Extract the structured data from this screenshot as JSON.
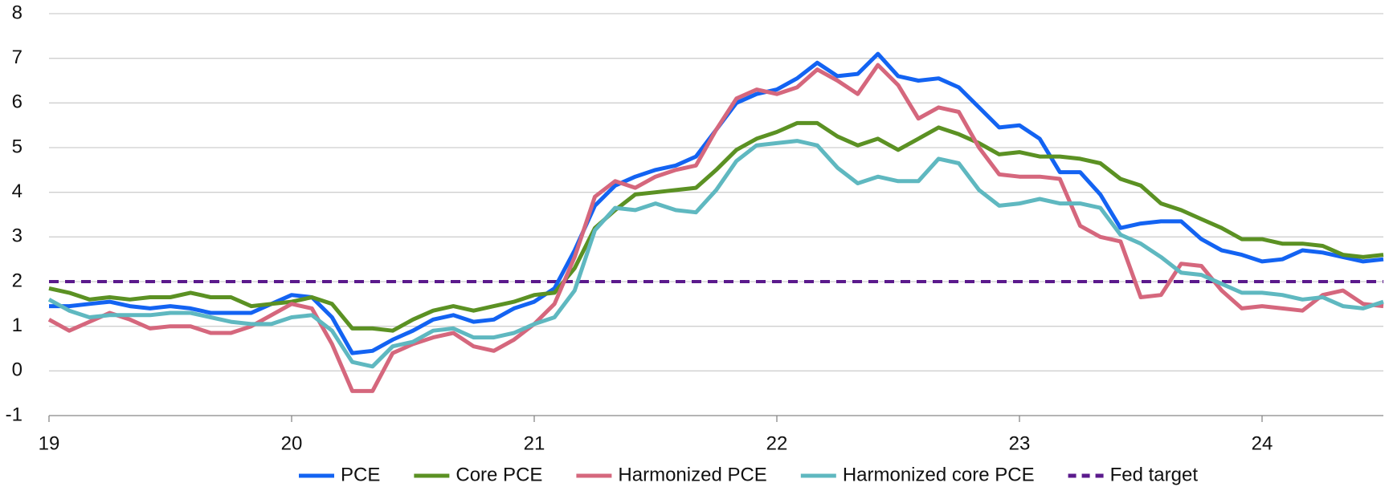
{
  "chart_data": {
    "type": "line",
    "categories": [
      "19",
      null,
      null,
      null,
      null,
      null,
      null,
      null,
      null,
      null,
      null,
      null,
      "20",
      null,
      null,
      null,
      null,
      null,
      null,
      null,
      null,
      null,
      null,
      null,
      "21",
      null,
      null,
      null,
      null,
      null,
      null,
      null,
      null,
      null,
      null,
      null,
      "22",
      null,
      null,
      null,
      null,
      null,
      null,
      null,
      null,
      null,
      null,
      null,
      "23",
      null,
      null,
      null,
      null,
      null,
      null,
      null,
      null,
      null,
      null,
      null,
      "24",
      null,
      null,
      null,
      null,
      null,
      null
    ],
    "series": [
      {
        "name": "PCE",
        "color": "#1363f2",
        "values": [
          1.45,
          1.45,
          1.5,
          1.55,
          1.45,
          1.4,
          1.45,
          1.4,
          1.3,
          1.3,
          1.3,
          1.5,
          1.7,
          1.65,
          1.2,
          0.4,
          0.45,
          0.7,
          0.9,
          1.15,
          1.25,
          1.1,
          1.15,
          1.4,
          1.55,
          1.85,
          2.7,
          3.7,
          4.15,
          4.35,
          4.5,
          4.6,
          4.8,
          5.4,
          6.0,
          6.2,
          6.3,
          6.55,
          6.9,
          6.6,
          6.65,
          7.1,
          6.6,
          6.5,
          6.55,
          6.35,
          5.9,
          5.45,
          5.5,
          5.2,
          4.45,
          4.45,
          3.95,
          3.2,
          3.3,
          3.35,
          3.35,
          2.95,
          2.7,
          2.6,
          2.45,
          2.5,
          2.7,
          2.65,
          2.55,
          2.45,
          2.5
        ]
      },
      {
        "name": "Core PCE",
        "color": "#5b9123",
        "values": [
          1.85,
          1.75,
          1.6,
          1.65,
          1.6,
          1.65,
          1.65,
          1.75,
          1.65,
          1.65,
          1.45,
          1.5,
          1.55,
          1.65,
          1.5,
          0.95,
          0.95,
          0.9,
          1.15,
          1.35,
          1.45,
          1.35,
          1.45,
          1.55,
          1.7,
          1.75,
          2.3,
          3.2,
          3.6,
          3.95,
          4.0,
          4.05,
          4.1,
          4.5,
          4.95,
          5.2,
          5.35,
          5.55,
          5.55,
          5.25,
          5.05,
          5.2,
          4.95,
          5.2,
          5.45,
          5.3,
          5.1,
          4.85,
          4.9,
          4.8,
          4.8,
          4.75,
          4.65,
          4.3,
          4.15,
          3.75,
          3.6,
          3.4,
          3.2,
          2.95,
          2.95,
          2.85,
          2.85,
          2.8,
          2.6,
          2.55,
          2.6
        ]
      },
      {
        "name": "Harmonized PCE",
        "color": "#d5677d",
        "values": [
          1.15,
          0.9,
          1.1,
          1.3,
          1.15,
          0.95,
          1.0,
          1.0,
          0.85,
          0.85,
          1.0,
          1.25,
          1.5,
          1.4,
          0.6,
          -0.45,
          -0.45,
          0.4,
          0.6,
          0.75,
          0.85,
          0.55,
          0.45,
          0.7,
          1.05,
          1.5,
          2.55,
          3.9,
          4.25,
          4.1,
          4.35,
          4.5,
          4.6,
          5.4,
          6.1,
          6.3,
          6.2,
          6.35,
          6.75,
          6.5,
          6.2,
          6.85,
          6.4,
          5.65,
          5.9,
          5.8,
          5.0,
          4.4,
          4.35,
          4.35,
          4.3,
          3.25,
          3.0,
          2.9,
          1.65,
          1.7,
          2.4,
          2.35,
          1.8,
          1.4,
          1.45,
          1.4,
          1.35,
          1.7,
          1.8,
          1.5,
          1.45
        ]
      },
      {
        "name": "Harmonized core PCE",
        "color": "#5fb8c0",
        "values": [
          1.6,
          1.35,
          1.2,
          1.25,
          1.25,
          1.25,
          1.3,
          1.3,
          1.2,
          1.1,
          1.05,
          1.05,
          1.2,
          1.25,
          0.9,
          0.2,
          0.1,
          0.55,
          0.65,
          0.9,
          0.95,
          0.75,
          0.75,
          0.85,
          1.05,
          1.2,
          1.8,
          3.15,
          3.65,
          3.6,
          3.75,
          3.6,
          3.55,
          4.05,
          4.7,
          5.05,
          5.1,
          5.15,
          5.05,
          4.55,
          4.2,
          4.35,
          4.25,
          4.25,
          4.75,
          4.65,
          4.05,
          3.7,
          3.75,
          3.85,
          3.75,
          3.75,
          3.65,
          3.05,
          2.85,
          2.55,
          2.2,
          2.15,
          1.95,
          1.75,
          1.75,
          1.7,
          1.6,
          1.65,
          1.45,
          1.4,
          1.55
        ]
      }
    ],
    "hlines": [
      {
        "name": "Fed target",
        "value": 2,
        "color": "#5b1a8c",
        "dashed": true
      }
    ],
    "ylim": [
      -1,
      8
    ],
    "yticks": [
      -1,
      0,
      1,
      2,
      3,
      4,
      5,
      6,
      7,
      8
    ],
    "grid": true,
    "legend": "bottom"
  }
}
